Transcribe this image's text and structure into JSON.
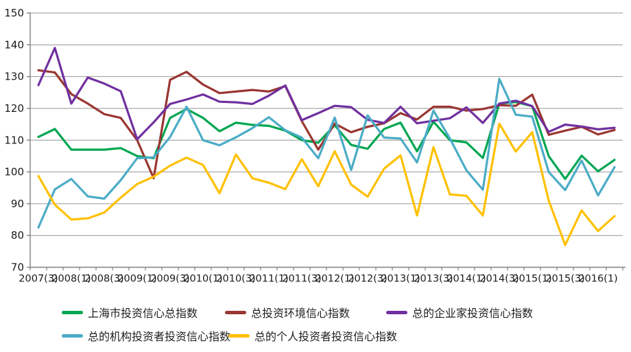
{
  "chart_data": {
    "type": "line",
    "title": "",
    "xlabel": "",
    "ylabel": "",
    "ylim": [
      70,
      150
    ],
    "ytick_step": 10,
    "y_tick_labels": [
      "150",
      "140",
      "130",
      "120",
      "110",
      "100",
      "90",
      "80",
      "70"
    ],
    "grid": true,
    "legend_position": "bottom",
    "n_points": 36,
    "x_categories": [
      "2007(3)",
      "2007(4)",
      "2008(1)",
      "2008(2)",
      "2008(3)",
      "2008(4)",
      "2009(1)",
      "2009(2)",
      "2009(3)",
      "2009(4)",
      "2010(1)",
      "2010(2)",
      "2010(3)",
      "2010(4)",
      "2011(1)",
      "2011(2)",
      "2011(3)",
      "2011(4)",
      "2012(1)",
      "2012(2)",
      "2012(3)",
      "2012(4)",
      "2013(1)",
      "2013(2)",
      "2013(3)",
      "2013(4)",
      "2014(1)",
      "2014(2)",
      "2014(3)",
      "2014(4)",
      "2015(1)",
      "2015(2)",
      "2015(3)",
      "2015(4)",
      "2016(1)",
      "2016(2)"
    ],
    "x_tick_labels": [
      "2007(3)",
      "2008(1)",
      "2008(3)",
      "2009(1)",
      "2009(3)",
      "2010(1)",
      "2010(3)",
      "2011(1)",
      "2011(3)",
      "2012(1)",
      "2012(3)",
      "2013(1)",
      "2013(3)",
      "2014(1)",
      "2014(3)",
      "2015(1)",
      "2015(3)",
      "2016(1)"
    ],
    "x_label_every": 2,
    "series": [
      {
        "name": "上海市投资信心总指数",
        "color": "#00A651",
        "values": [
          111,
          113.5,
          107,
          107,
          107,
          107.5,
          105,
          104.3,
          117,
          119.8,
          117,
          112.8,
          115.5,
          114.8,
          114.5,
          113,
          110,
          109.2,
          114.7,
          108.5,
          107.3,
          113.5,
          115.5,
          106.5,
          115.8,
          110,
          109.3,
          104.4,
          121.5,
          122,
          120.7,
          105,
          97.8,
          105.1,
          100.2,
          103.8
        ]
      },
      {
        "name": "总投资环境信心指数",
        "color": "#9A3632",
        "values": [
          132,
          131.3,
          124.5,
          121.5,
          118.2,
          117,
          110,
          98,
          129,
          131.5,
          127.5,
          124.8,
          125.3,
          125.8,
          125.3,
          127,
          116,
          107,
          115.2,
          112.5,
          114.2,
          115.3,
          118.5,
          116.5,
          120.5,
          120.5,
          119.3,
          119.8,
          121,
          120.8,
          124.3,
          111.7,
          113,
          114.2,
          111.8,
          113.2
        ]
      },
      {
        "name": "总的企业家投资信心指数",
        "color": "#7030A0",
        "values": [
          127.3,
          139,
          121.5,
          129.7,
          127.8,
          125.4,
          110.3,
          115.6,
          121.4,
          122.8,
          124.4,
          122.1,
          121.9,
          121.4,
          124,
          127.2,
          116.3,
          118.5,
          120.8,
          120.4,
          116.4,
          115.4,
          120.5,
          115.3,
          116.1,
          116.9,
          120.3,
          115.4,
          121.5,
          122.4,
          120.7,
          112.6,
          114.9,
          114.3,
          113.4,
          113.9
        ]
      },
      {
        "name": "总的机构投资者投资信心指数",
        "color": "#4BACC6",
        "values": [
          82.5,
          94.5,
          97.8,
          92.3,
          91.6,
          97.4,
          104.3,
          104.6,
          111,
          120.5,
          110,
          108.4,
          110.9,
          113.8,
          117.2,
          113.1,
          110.8,
          104.3,
          117.1,
          100.6,
          117.8,
          110.8,
          110.5,
          103,
          119.3,
          110.5,
          100.5,
          94.4,
          129.3,
          118,
          117.4,
          100,
          94.3,
          103.6,
          92.6,
          101.5
        ]
      },
      {
        "name": "总的个人投资者投资信心指数",
        "color": "#FFC000",
        "values": [
          98.7,
          89.7,
          85,
          85.4,
          87.2,
          91.9,
          96.2,
          98.5,
          102,
          104.5,
          102.2,
          93.3,
          105.5,
          98,
          96.6,
          94.6,
          104,
          95.5,
          106.5,
          96,
          92.2,
          101,
          105.2,
          86.3,
          107.8,
          92.9,
          92.5,
          86.3,
          115.2,
          106.4,
          112.5,
          91,
          77,
          87.9,
          81.4,
          86.1
        ]
      }
    ],
    "axis_color": "#808080",
    "grid_color": "#969696"
  },
  "legend": {
    "items": [
      {
        "label": "上海市投资信心总指数"
      },
      {
        "label": "总投资环境信心指数"
      },
      {
        "label": "总的企业家投资信心指数"
      },
      {
        "label": "总的机构投资者投资信心指数"
      },
      {
        "label": "总的个人投资者投资信心指数"
      }
    ]
  }
}
